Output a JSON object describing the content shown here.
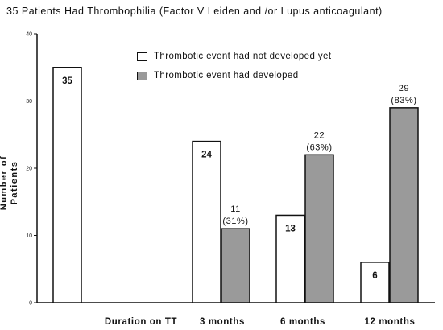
{
  "title": "35 Patients Had  Thrombophilia (Factor V Leiden and /or Lupus anticoagulant)",
  "chart_data": {
    "type": "bar",
    "title": "35 Patients Had  Thrombophilia (Factor V Leiden and /or Lupus anticoagulant)",
    "ylabel_lines": [
      "Number of",
      "Patients"
    ],
    "ylim": [
      0,
      40
    ],
    "yticks": [
      0,
      10,
      20,
      30,
      40
    ],
    "categories": [
      "Duration on TT",
      "3 months",
      "6 months",
      "12 months"
    ],
    "series": [
      {
        "name": "Thrombotic event had not developed yet",
        "color": "#ffffff",
        "values": [
          35,
          24,
          13,
          6
        ],
        "labels": [
          "35",
          "24",
          "13",
          "6"
        ]
      },
      {
        "name": "Thrombotic event had developed",
        "color": "#9a9a9a",
        "values": [
          null,
          11,
          22,
          29
        ],
        "labels": [
          null,
          "11",
          "22",
          "29"
        ],
        "percent_labels": [
          null,
          "(31%)",
          "(63%)",
          "(83%)"
        ]
      }
    ],
    "grid": false,
    "legend_position": "top-center"
  }
}
